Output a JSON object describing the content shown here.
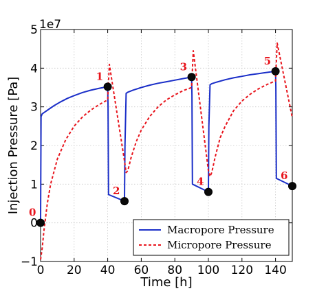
{
  "chart_data": {
    "type": "line",
    "title": "",
    "xlabel": "Time [h]",
    "ylabel": "Injection Pressure [Pa]",
    "y_offset_label": "1e7",
    "xlim": [
      0,
      150
    ],
    "ylim": [
      -1,
      5
    ],
    "y_scale": 10000000,
    "grid": true,
    "legend_position": "lower-right",
    "x_ticks": [
      0,
      20,
      40,
      60,
      80,
      100,
      120,
      140
    ],
    "y_ticks": [
      -1,
      0,
      1,
      2,
      3,
      4,
      5
    ],
    "series": [
      {
        "name": "Macropore Pressure",
        "color": "#1a2ec8",
        "style": "solid",
        "x": [
          0,
          0.3,
          1,
          3,
          5,
          8,
          12,
          16,
          20,
          25,
          30,
          35,
          40,
          40.2,
          40.5,
          50,
          50.3,
          51,
          52,
          55,
          60,
          65,
          70,
          75,
          80,
          85,
          90,
          90.2,
          90.5,
          100,
          100.3,
          101,
          102,
          105,
          110,
          115,
          120,
          125,
          130,
          135,
          140,
          140.2,
          140.5,
          150
        ],
        "y": [
          0,
          2.75,
          2.82,
          2.88,
          2.94,
          3.03,
          3.13,
          3.22,
          3.29,
          3.37,
          3.43,
          3.48,
          3.52,
          3.0,
          0.73,
          0.56,
          2.0,
          3.35,
          3.38,
          3.43,
          3.5,
          3.56,
          3.61,
          3.65,
          3.69,
          3.73,
          3.77,
          3.3,
          1.0,
          0.8,
          2.5,
          3.57,
          3.6,
          3.64,
          3.7,
          3.75,
          3.79,
          3.83,
          3.86,
          3.89,
          3.92,
          3.5,
          1.15,
          0.95
        ]
      },
      {
        "name": "Micropore Pressure",
        "color": "#e8141c",
        "style": "dashed",
        "x": [
          0,
          1,
          2,
          4,
          6,
          10,
          15,
          20,
          25,
          30,
          35,
          40,
          41,
          50,
          51,
          52,
          54,
          57,
          60,
          65,
          70,
          75,
          80,
          85,
          90,
          91,
          100,
          101,
          102,
          104,
          107,
          110,
          115,
          120,
          125,
          130,
          135,
          140,
          141,
          150
        ],
        "y": [
          -0.95,
          -0.65,
          -0.2,
          0.5,
          1.0,
          1.65,
          2.15,
          2.5,
          2.74,
          2.92,
          3.06,
          3.18,
          4.1,
          1.6,
          1.3,
          1.35,
          1.7,
          2.1,
          2.4,
          2.75,
          3.0,
          3.18,
          3.31,
          3.42,
          3.5,
          4.45,
          1.35,
          1.2,
          1.3,
          1.7,
          2.2,
          2.5,
          2.9,
          3.15,
          3.33,
          3.47,
          3.58,
          3.67,
          4.65,
          2.72
        ]
      }
    ],
    "markers": [
      {
        "label": "0",
        "x": 0,
        "y": 0
      },
      {
        "label": "1",
        "x": 40,
        "y": 3.52
      },
      {
        "label": "2",
        "x": 50,
        "y": 0.56
      },
      {
        "label": "3",
        "x": 90,
        "y": 3.77
      },
      {
        "label": "4",
        "x": 100,
        "y": 0.8
      },
      {
        "label": "5",
        "x": 140,
        "y": 3.92
      },
      {
        "label": "6",
        "x": 150,
        "y": 0.95
      }
    ]
  }
}
